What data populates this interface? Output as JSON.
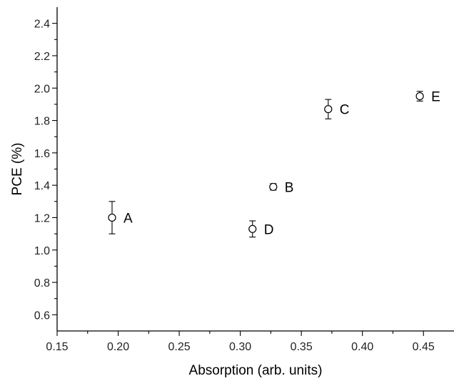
{
  "chart_data": {
    "type": "scatter",
    "title": "",
    "xlabel": "Absorption (arb. units)",
    "ylabel": "PCE (%)",
    "xlim": [
      0.15,
      0.475
    ],
    "ylim": [
      0.5,
      2.5
    ],
    "x_ticks": [
      0.15,
      0.2,
      0.25,
      0.3,
      0.35,
      0.4,
      0.45
    ],
    "x_tick_labels": [
      "0.15",
      "0.20",
      "0.25",
      "0.30",
      "0.35",
      "0.40",
      "0.45"
    ],
    "y_ticks": [
      0.6,
      0.8,
      1.0,
      1.2,
      1.4,
      1.6,
      1.8,
      2.0,
      2.2,
      2.4
    ],
    "y_tick_labels": [
      "0.6",
      "0.8",
      "1.0",
      "1.2",
      "1.4",
      "1.6",
      "1.8",
      "2.0",
      "2.2",
      "2.4"
    ],
    "grid": false,
    "marker": "open-circle",
    "points": [
      {
        "label": "A",
        "x": 0.195,
        "y": 1.2,
        "err": 0.1
      },
      {
        "label": "B",
        "x": 0.327,
        "y": 1.39,
        "err": 0.02
      },
      {
        "label": "C",
        "x": 0.372,
        "y": 1.87,
        "err": 0.06
      },
      {
        "label": "D",
        "x": 0.31,
        "y": 1.13,
        "err": 0.05
      },
      {
        "label": "E",
        "x": 0.447,
        "y": 1.95,
        "err": 0.03
      }
    ]
  }
}
